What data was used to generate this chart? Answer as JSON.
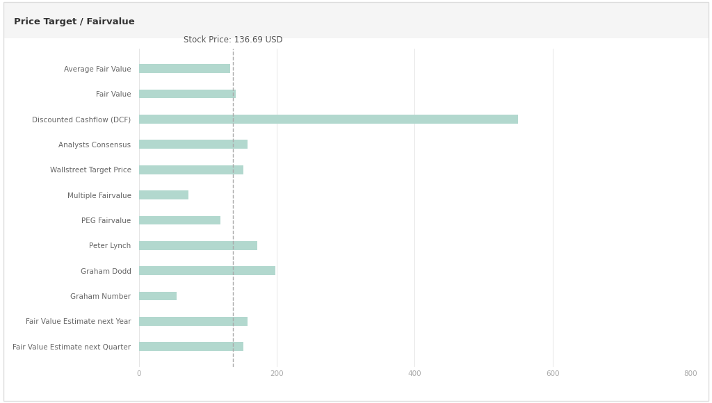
{
  "title": "Price Target / Fairvalue",
  "stock_price_label": "Stock Price: 136.69 USD",
  "stock_price": 136.69,
  "categories": [
    "Average Fair Value",
    "Fair Value",
    "Discounted Cashflow (DCF)",
    "Analysts Consensus",
    "Wallstreet Target Price",
    "Multiple Fairvalue",
    "PEG Fairvalue",
    "Peter Lynch",
    "Graham Dodd",
    "Graham Number",
    "Fair Value Estimate next Year",
    "Fair Value Estimate next Quarter"
  ],
  "values": [
    132,
    140,
    550,
    158,
    152,
    72,
    118,
    172,
    198,
    55,
    158,
    152
  ],
  "bar_color": "#b2d8ce",
  "dashed_line_color": "#aaaaaa",
  "grid_color": "#e0e0e0",
  "background_color": "#ffffff",
  "title_bg_color": "#f5f5f5",
  "border_color": "#dddddd",
  "xlim": [
    0,
    800
  ],
  "xticks": [
    0,
    200,
    400,
    600,
    800
  ],
  "title_fontsize": 9.5,
  "label_fontsize": 7.5,
  "tick_fontsize": 7.5,
  "annotation_fontsize": 8.5,
  "bar_height": 0.35
}
